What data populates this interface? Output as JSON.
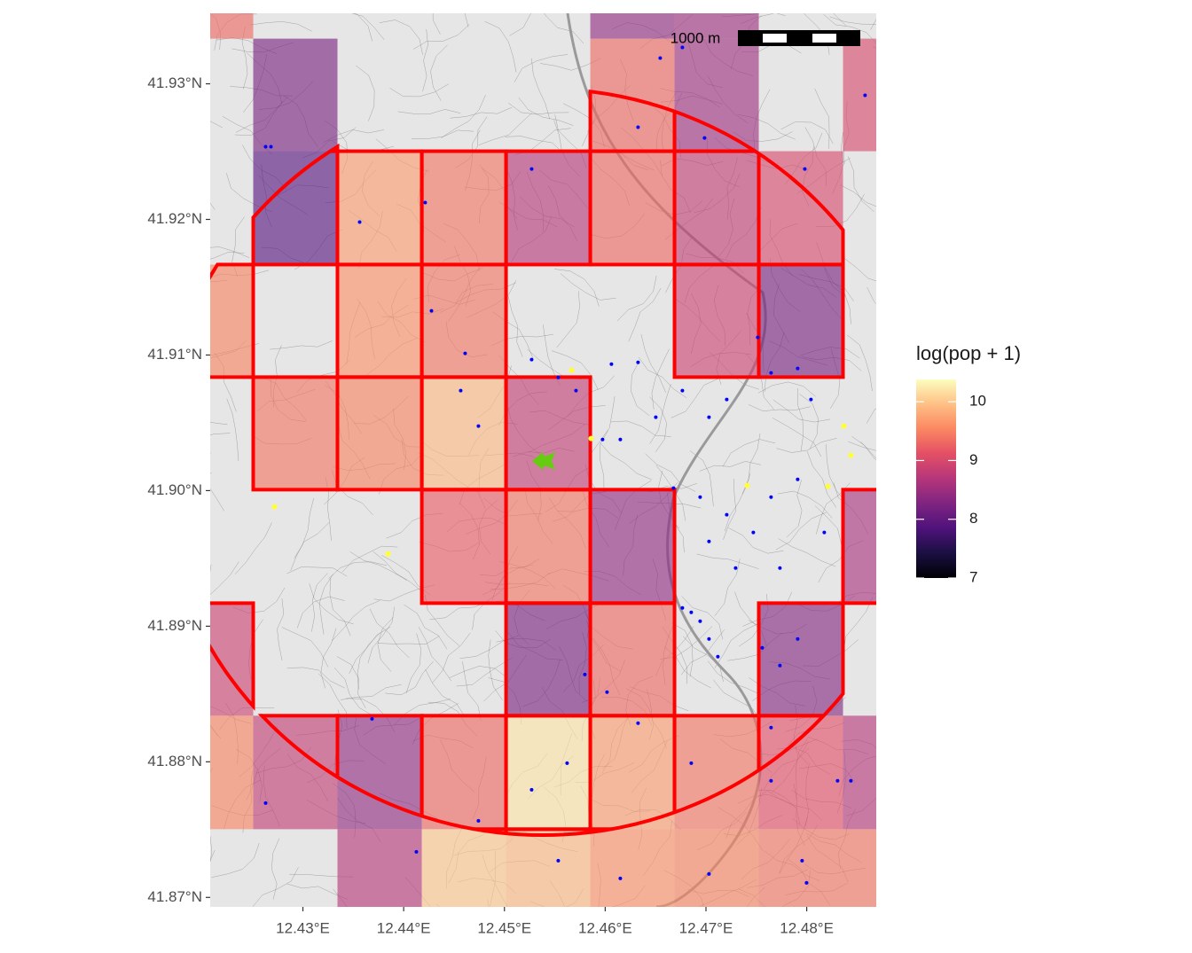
{
  "chart_data": {
    "type": "map",
    "legend_title": "log(pop + 1)",
    "scale_bar_label": "1000 m",
    "xlim": [
      12.4208,
      12.4869
    ],
    "ylim": [
      41.8693,
      41.9352
    ],
    "xticks": [
      {
        "value": 12.43,
        "label": "12.43°E"
      },
      {
        "value": 12.44,
        "label": "12.44°E"
      },
      {
        "value": 12.45,
        "label": "12.45°E"
      },
      {
        "value": 12.46,
        "label": "12.46°E"
      },
      {
        "value": 12.47,
        "label": "12.47°E"
      },
      {
        "value": 12.48,
        "label": "12.48°E"
      }
    ],
    "yticks": [
      {
        "value": 41.87,
        "label": "41.87°N"
      },
      {
        "value": 41.88,
        "label": "41.88°N"
      },
      {
        "value": 41.89,
        "label": "41.89°N"
      },
      {
        "value": 41.9,
        "label": "41.90°N"
      },
      {
        "value": 41.91,
        "label": "41.91°N"
      },
      {
        "value": 41.92,
        "label": "41.92°N"
      },
      {
        "value": 41.93,
        "label": "41.93°N"
      }
    ],
    "colorbar": {
      "lim": [
        7,
        10.38
      ],
      "ticks": [
        7,
        8,
        9,
        10
      ]
    },
    "lon_edges": [
      12.41671,
      12.42507,
      12.43343,
      12.4418,
      12.45016,
      12.45852,
      12.46688,
      12.47524,
      12.4836,
      12.49196
    ],
    "lat_edges": [
      41.94163,
      41.93333,
      41.92503,
      41.91667,
      41.90837,
      41.90007,
      41.8917,
      41.8834,
      41.87503,
      41.86667
    ],
    "cell_values": [
      [
        9.3,
        null,
        null,
        null,
        null,
        8.4,
        8.5,
        null,
        null
      ],
      [
        null,
        8.2,
        null,
        null,
        null,
        9.3,
        8.5,
        null,
        9.0
      ],
      [
        null,
        7.9,
        9.7,
        9.4,
        8.7,
        9.3,
        8.8,
        9.0,
        null
      ],
      [
        9.5,
        null,
        9.6,
        9.4,
        null,
        null,
        8.9,
        8.2,
        null
      ],
      [
        null,
        9.4,
        9.5,
        9.9,
        8.8,
        null,
        null,
        null,
        null
      ],
      [
        null,
        null,
        null,
        9.2,
        9.4,
        8.4,
        null,
        null,
        8.6
      ],
      [
        8.9,
        null,
        null,
        null,
        8.2,
        9.3,
        null,
        8.3,
        null
      ],
      [
        9.5,
        8.8,
        8.4,
        9.3,
        10.2,
        9.7,
        9.4,
        9.1,
        8.7
      ],
      [
        null,
        null,
        8.7,
        10.0,
        9.9,
        9.6,
        9.5,
        9.4,
        9.4
      ]
    ],
    "points": {
      "color": "#0000ff",
      "lon": [
        12.4263,
        12.42683,
        12.43563,
        12.44214,
        12.4527,
        12.46326,
        12.46986,
        12.47981,
        12.48579,
        12.46546,
        12.46766,
        12.44276,
        12.4461,
        12.4527,
        12.45534,
        12.4571,
        12.46062,
        12.46326,
        12.46766,
        12.4703,
        12.47206,
        12.47514,
        12.47646,
        12.4791,
        12.48042,
        12.44742,
        12.44566,
        12.45974,
        12.4615,
        12.46502,
        12.46678,
        12.46942,
        12.47206,
        12.4747,
        12.47646,
        12.4791,
        12.48174,
        12.47734,
        12.4703,
        12.47294,
        12.46854,
        12.46942,
        12.4703,
        12.47118,
        12.46766,
        12.47558,
        12.47734,
        12.4791,
        12.45798,
        12.46018,
        12.46326,
        12.46854,
        12.45622,
        12.4527,
        12.44742,
        12.43686,
        12.4263,
        12.44126,
        12.45534,
        12.4615,
        12.4703,
        12.47954,
        12.47998,
        12.47646,
        12.48438,
        12.48306,
        12.47646
      ],
      "lat": [
        41.92536,
        41.92536,
        41.9198,
        41.92124,
        41.92372,
        41.9268,
        41.92601,
        41.92372,
        41.92915,
        41.9319,
        41.93268,
        41.91326,
        41.91012,
        41.90966,
        41.90835,
        41.90737,
        41.90933,
        41.90946,
        41.90737,
        41.90541,
        41.90672,
        41.9113,
        41.90868,
        41.90901,
        41.90672,
        41.90476,
        41.90737,
        41.90377,
        41.90377,
        41.90541,
        41.90018,
        41.89952,
        41.89822,
        41.89691,
        41.89952,
        41.90083,
        41.89691,
        41.89429,
        41.89625,
        41.89429,
        41.89102,
        41.89037,
        41.88906,
        41.88775,
        41.89135,
        41.88841,
        41.8871,
        41.88906,
        41.88644,
        41.88514,
        41.88285,
        41.8799,
        41.8799,
        41.87794,
        41.87565,
        41.88317,
        41.87696,
        41.87336,
        41.87271,
        41.8714,
        41.87173,
        41.87271,
        41.87107,
        41.8786,
        41.8786,
        41.8786,
        41.88252
      ]
    },
    "highlight_points": {
      "color": "#ffff33",
      "lon": [
        12.45667,
        12.4586,
        12.42718,
        12.43845,
        12.47409,
        12.4821,
        12.48368,
        12.48438
      ],
      "lat": [
        41.90888,
        41.90384,
        41.8988,
        41.89534,
        41.90037,
        41.90031,
        41.90476,
        41.9026
      ]
    }
  }
}
